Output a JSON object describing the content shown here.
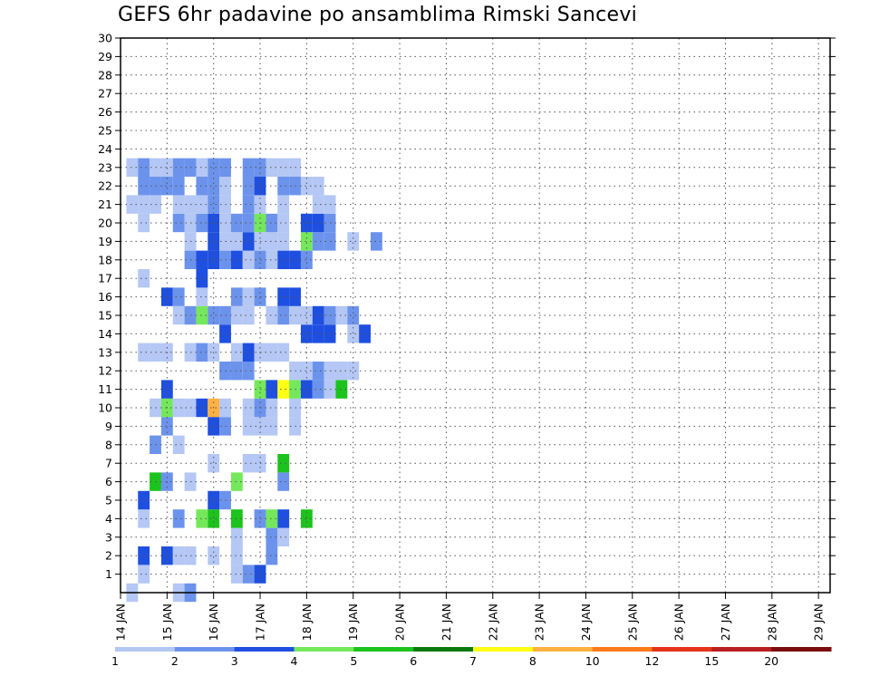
{
  "chart_data": {
    "type": "heatmap",
    "title": "GEFS 6hr padavine po ansamblima Rimski Sancevi",
    "x_tick_labels": [
      "14 JAN",
      "15 JAN",
      "16 JAN",
      "17 JAN",
      "18 JAN",
      "19 JAN",
      "20 JAN",
      "21 JAN",
      "22 JAN",
      "23 JAN",
      "24 JAN",
      "25 JAN",
      "26 JAN",
      "27 JAN",
      "28 JAN",
      "29 JAN"
    ],
    "y_tick_labels": [
      "1",
      "2",
      "3",
      "4",
      "5",
      "6",
      "7",
      "8",
      "9",
      "10",
      "11",
      "12",
      "13",
      "14",
      "15",
      "16",
      "17",
      "18",
      "19",
      "20",
      "21",
      "22",
      "23",
      "24",
      "25",
      "26",
      "27",
      "28",
      "29",
      "30"
    ],
    "x_range": [
      0,
      61
    ],
    "y_range": [
      0,
      30
    ],
    "grid": true,
    "legend": {
      "placement": "bottom",
      "boundary_labels": [
        "1",
        "2",
        "3",
        "4",
        "5",
        "6",
        "7",
        "8",
        "10",
        "12",
        "15",
        "20"
      ],
      "colors": [
        "#b4c7f5",
        "#6c93ec",
        "#1e4fe0",
        "#74e85a",
        "#1cc31c",
        "#0b7a0b",
        "#ffff14",
        "#ffb23f",
        "#ff7a1a",
        "#e5341a",
        "#b81f1f",
        "#7a0d0d"
      ]
    },
    "cells": [
      {
        "x": 0,
        "y": 0,
        "v": 1
      },
      {
        "x": 4,
        "y": 0,
        "v": 1
      },
      {
        "x": 5,
        "y": 0,
        "v": 2
      },
      {
        "x": 1,
        "y": 1,
        "v": 1
      },
      {
        "x": 9,
        "y": 1,
        "v": 1
      },
      {
        "x": 10,
        "y": 1,
        "v": 2
      },
      {
        "x": 11,
        "y": 1,
        "v": 3
      },
      {
        "x": 1,
        "y": 2,
        "v": 3
      },
      {
        "x": 3,
        "y": 2,
        "v": 3
      },
      {
        "x": 4,
        "y": 2,
        "v": 1
      },
      {
        "x": 5,
        "y": 2,
        "v": 1
      },
      {
        "x": 7,
        "y": 2,
        "v": 1
      },
      {
        "x": 9,
        "y": 2,
        "v": 1
      },
      {
        "x": 12,
        "y": 2,
        "v": 2
      },
      {
        "x": 9,
        "y": 3,
        "v": 1
      },
      {
        "x": 12,
        "y": 3,
        "v": 2
      },
      {
        "x": 13,
        "y": 3,
        "v": 1
      },
      {
        "x": 1,
        "y": 4,
        "v": 1
      },
      {
        "x": 4,
        "y": 4,
        "v": 2
      },
      {
        "x": 6,
        "y": 4,
        "v": 4
      },
      {
        "x": 7,
        "y": 4,
        "v": 5
      },
      {
        "x": 9,
        "y": 4,
        "v": 5
      },
      {
        "x": 11,
        "y": 4,
        "v": 2
      },
      {
        "x": 12,
        "y": 4,
        "v": 4
      },
      {
        "x": 13,
        "y": 4,
        "v": 3
      },
      {
        "x": 15,
        "y": 4,
        "v": 5
      },
      {
        "x": 1,
        "y": 5,
        "v": 3
      },
      {
        "x": 7,
        "y": 5,
        "v": 3
      },
      {
        "x": 8,
        "y": 5,
        "v": 2
      },
      {
        "x": 2,
        "y": 6,
        "v": 5
      },
      {
        "x": 3,
        "y": 6,
        "v": 2
      },
      {
        "x": 5,
        "y": 6,
        "v": 1
      },
      {
        "x": 9,
        "y": 6,
        "v": 4
      },
      {
        "x": 13,
        "y": 6,
        "v": 2
      },
      {
        "x": 7,
        "y": 7,
        "v": 1
      },
      {
        "x": 10,
        "y": 7,
        "v": 1
      },
      {
        "x": 11,
        "y": 7,
        "v": 1
      },
      {
        "x": 13,
        "y": 7,
        "v": 5
      },
      {
        "x": 2,
        "y": 8,
        "v": 2
      },
      {
        "x": 4,
        "y": 8,
        "v": 1
      },
      {
        "x": 3,
        "y": 9,
        "v": 2
      },
      {
        "x": 7,
        "y": 9,
        "v": 3
      },
      {
        "x": 8,
        "y": 9,
        "v": 2
      },
      {
        "x": 10,
        "y": 9,
        "v": 1
      },
      {
        "x": 11,
        "y": 9,
        "v": 1
      },
      {
        "x": 12,
        "y": 9,
        "v": 1
      },
      {
        "x": 14,
        "y": 9,
        "v": 1
      },
      {
        "x": 2,
        "y": 10,
        "v": 1
      },
      {
        "x": 3,
        "y": 10,
        "v": 4
      },
      {
        "x": 4,
        "y": 10,
        "v": 1
      },
      {
        "x": 5,
        "y": 10,
        "v": 1
      },
      {
        "x": 6,
        "y": 10,
        "v": 3
      },
      {
        "x": 7,
        "y": 10,
        "v": 8
      },
      {
        "x": 8,
        "y": 10,
        "v": 1
      },
      {
        "x": 10,
        "y": 10,
        "v": 1
      },
      {
        "x": 11,
        "y": 10,
        "v": 2
      },
      {
        "x": 12,
        "y": 10,
        "v": 1
      },
      {
        "x": 14,
        "y": 10,
        "v": 1
      },
      {
        "x": 3,
        "y": 11,
        "v": 3
      },
      {
        "x": 11,
        "y": 11,
        "v": 4
      },
      {
        "x": 12,
        "y": 11,
        "v": 3
      },
      {
        "x": 13,
        "y": 11,
        "v": 7
      },
      {
        "x": 14,
        "y": 11,
        "v": 4
      },
      {
        "x": 15,
        "y": 11,
        "v": 3
      },
      {
        "x": 16,
        "y": 11,
        "v": 2
      },
      {
        "x": 17,
        "y": 11,
        "v": 1
      },
      {
        "x": 18,
        "y": 11,
        "v": 5
      },
      {
        "x": 8,
        "y": 12,
        "v": 2
      },
      {
        "x": 9,
        "y": 12,
        "v": 2
      },
      {
        "x": 10,
        "y": 12,
        "v": 2
      },
      {
        "x": 14,
        "y": 12,
        "v": 1
      },
      {
        "x": 15,
        "y": 12,
        "v": 1
      },
      {
        "x": 16,
        "y": 12,
        "v": 2
      },
      {
        "x": 17,
        "y": 12,
        "v": 1
      },
      {
        "x": 18,
        "y": 12,
        "v": 1
      },
      {
        "x": 19,
        "y": 12,
        "v": 1
      },
      {
        "x": 1,
        "y": 13,
        "v": 1
      },
      {
        "x": 2,
        "y": 13,
        "v": 1
      },
      {
        "x": 3,
        "y": 13,
        "v": 1
      },
      {
        "x": 5,
        "y": 13,
        "v": 1
      },
      {
        "x": 6,
        "y": 13,
        "v": 2
      },
      {
        "x": 7,
        "y": 13,
        "v": 1
      },
      {
        "x": 9,
        "y": 13,
        "v": 1
      },
      {
        "x": 10,
        "y": 13,
        "v": 3
      },
      {
        "x": 11,
        "y": 13,
        "v": 1
      },
      {
        "x": 12,
        "y": 13,
        "v": 1
      },
      {
        "x": 13,
        "y": 13,
        "v": 1
      },
      {
        "x": 8,
        "y": 14,
        "v": 3
      },
      {
        "x": 15,
        "y": 14,
        "v": 3
      },
      {
        "x": 16,
        "y": 14,
        "v": 3
      },
      {
        "x": 17,
        "y": 14,
        "v": 3
      },
      {
        "x": 19,
        "y": 14,
        "v": 1
      },
      {
        "x": 20,
        "y": 14,
        "v": 3
      },
      {
        "x": 4,
        "y": 15,
        "v": 1
      },
      {
        "x": 5,
        "y": 15,
        "v": 2
      },
      {
        "x": 6,
        "y": 15,
        "v": 4
      },
      {
        "x": 7,
        "y": 15,
        "v": 2
      },
      {
        "x": 8,
        "y": 15,
        "v": 2
      },
      {
        "x": 9,
        "y": 15,
        "v": 1
      },
      {
        "x": 10,
        "y": 15,
        "v": 1
      },
      {
        "x": 12,
        "y": 15,
        "v": 1
      },
      {
        "x": 13,
        "y": 15,
        "v": 2
      },
      {
        "x": 14,
        "y": 15,
        "v": 1
      },
      {
        "x": 15,
        "y": 15,
        "v": 1
      },
      {
        "x": 16,
        "y": 15,
        "v": 3
      },
      {
        "x": 17,
        "y": 15,
        "v": 2
      },
      {
        "x": 18,
        "y": 15,
        "v": 1
      },
      {
        "x": 19,
        "y": 15,
        "v": 2
      },
      {
        "x": 3,
        "y": 16,
        "v": 3
      },
      {
        "x": 4,
        "y": 16,
        "v": 2
      },
      {
        "x": 6,
        "y": 16,
        "v": 1
      },
      {
        "x": 9,
        "y": 16,
        "v": 2
      },
      {
        "x": 10,
        "y": 16,
        "v": 1
      },
      {
        "x": 11,
        "y": 16,
        "v": 2
      },
      {
        "x": 13,
        "y": 16,
        "v": 3
      },
      {
        "x": 14,
        "y": 16,
        "v": 3
      },
      {
        "x": 1,
        "y": 17,
        "v": 1
      },
      {
        "x": 6,
        "y": 17,
        "v": 3
      },
      {
        "x": 5,
        "y": 18,
        "v": 2
      },
      {
        "x": 6,
        "y": 18,
        "v": 3
      },
      {
        "x": 7,
        "y": 18,
        "v": 3
      },
      {
        "x": 8,
        "y": 18,
        "v": 2
      },
      {
        "x": 9,
        "y": 18,
        "v": 3
      },
      {
        "x": 10,
        "y": 18,
        "v": 1
      },
      {
        "x": 11,
        "y": 18,
        "v": 2
      },
      {
        "x": 12,
        "y": 18,
        "v": 1
      },
      {
        "x": 13,
        "y": 18,
        "v": 3
      },
      {
        "x": 14,
        "y": 18,
        "v": 3
      },
      {
        "x": 15,
        "y": 18,
        "v": 2
      },
      {
        "x": 5,
        "y": 19,
        "v": 1
      },
      {
        "x": 7,
        "y": 19,
        "v": 3
      },
      {
        "x": 8,
        "y": 19,
        "v": 1
      },
      {
        "x": 9,
        "y": 19,
        "v": 1
      },
      {
        "x": 10,
        "y": 19,
        "v": 3
      },
      {
        "x": 11,
        "y": 19,
        "v": 1
      },
      {
        "x": 12,
        "y": 19,
        "v": 1
      },
      {
        "x": 13,
        "y": 19,
        "v": 1
      },
      {
        "x": 15,
        "y": 19,
        "v": 4
      },
      {
        "x": 16,
        "y": 19,
        "v": 2
      },
      {
        "x": 17,
        "y": 19,
        "v": 2
      },
      {
        "x": 19,
        "y": 19,
        "v": 1
      },
      {
        "x": 21,
        "y": 19,
        "v": 2
      },
      {
        "x": 1,
        "y": 20,
        "v": 1
      },
      {
        "x": 4,
        "y": 20,
        "v": 2
      },
      {
        "x": 5,
        "y": 20,
        "v": 1
      },
      {
        "x": 6,
        "y": 20,
        "v": 2
      },
      {
        "x": 7,
        "y": 20,
        "v": 3
      },
      {
        "x": 8,
        "y": 20,
        "v": 1
      },
      {
        "x": 9,
        "y": 20,
        "v": 2
      },
      {
        "x": 10,
        "y": 20,
        "v": 2
      },
      {
        "x": 11,
        "y": 20,
        "v": 4
      },
      {
        "x": 12,
        "y": 20,
        "v": 2
      },
      {
        "x": 13,
        "y": 20,
        "v": 1
      },
      {
        "x": 15,
        "y": 20,
        "v": 3
      },
      {
        "x": 16,
        "y": 20,
        "v": 3
      },
      {
        "x": 17,
        "y": 20,
        "v": 2
      },
      {
        "x": 0,
        "y": 21,
        "v": 1
      },
      {
        "x": 1,
        "y": 21,
        "v": 1
      },
      {
        "x": 2,
        "y": 21,
        "v": 1
      },
      {
        "x": 4,
        "y": 21,
        "v": 1
      },
      {
        "x": 5,
        "y": 21,
        "v": 1
      },
      {
        "x": 6,
        "y": 21,
        "v": 1
      },
      {
        "x": 7,
        "y": 21,
        "v": 2
      },
      {
        "x": 8,
        "y": 21,
        "v": 1
      },
      {
        "x": 10,
        "y": 21,
        "v": 2
      },
      {
        "x": 11,
        "y": 21,
        "v": 1
      },
      {
        "x": 13,
        "y": 21,
        "v": 1
      },
      {
        "x": 16,
        "y": 21,
        "v": 1
      },
      {
        "x": 17,
        "y": 21,
        "v": 1
      },
      {
        "x": 1,
        "y": 22,
        "v": 2
      },
      {
        "x": 2,
        "y": 22,
        "v": 2
      },
      {
        "x": 3,
        "y": 22,
        "v": 2
      },
      {
        "x": 4,
        "y": 22,
        "v": 2
      },
      {
        "x": 6,
        "y": 22,
        "v": 2
      },
      {
        "x": 7,
        "y": 22,
        "v": 2
      },
      {
        "x": 8,
        "y": 22,
        "v": 1
      },
      {
        "x": 10,
        "y": 22,
        "v": 2
      },
      {
        "x": 11,
        "y": 22,
        "v": 3
      },
      {
        "x": 13,
        "y": 22,
        "v": 2
      },
      {
        "x": 14,
        "y": 22,
        "v": 2
      },
      {
        "x": 15,
        "y": 22,
        "v": 1
      },
      {
        "x": 16,
        "y": 22,
        "v": 1
      },
      {
        "x": 0,
        "y": 23,
        "v": 1
      },
      {
        "x": 1,
        "y": 23,
        "v": 2
      },
      {
        "x": 2,
        "y": 23,
        "v": 1
      },
      {
        "x": 3,
        "y": 23,
        "v": 1
      },
      {
        "x": 4,
        "y": 23,
        "v": 2
      },
      {
        "x": 5,
        "y": 23,
        "v": 2
      },
      {
        "x": 6,
        "y": 23,
        "v": 1
      },
      {
        "x": 7,
        "y": 23,
        "v": 2
      },
      {
        "x": 8,
        "y": 23,
        "v": 2
      },
      {
        "x": 10,
        "y": 23,
        "v": 2
      },
      {
        "x": 11,
        "y": 23,
        "v": 2
      },
      {
        "x": 12,
        "y": 23,
        "v": 1
      },
      {
        "x": 13,
        "y": 23,
        "v": 1
      },
      {
        "x": 14,
        "y": 23,
        "v": 1
      }
    ]
  }
}
